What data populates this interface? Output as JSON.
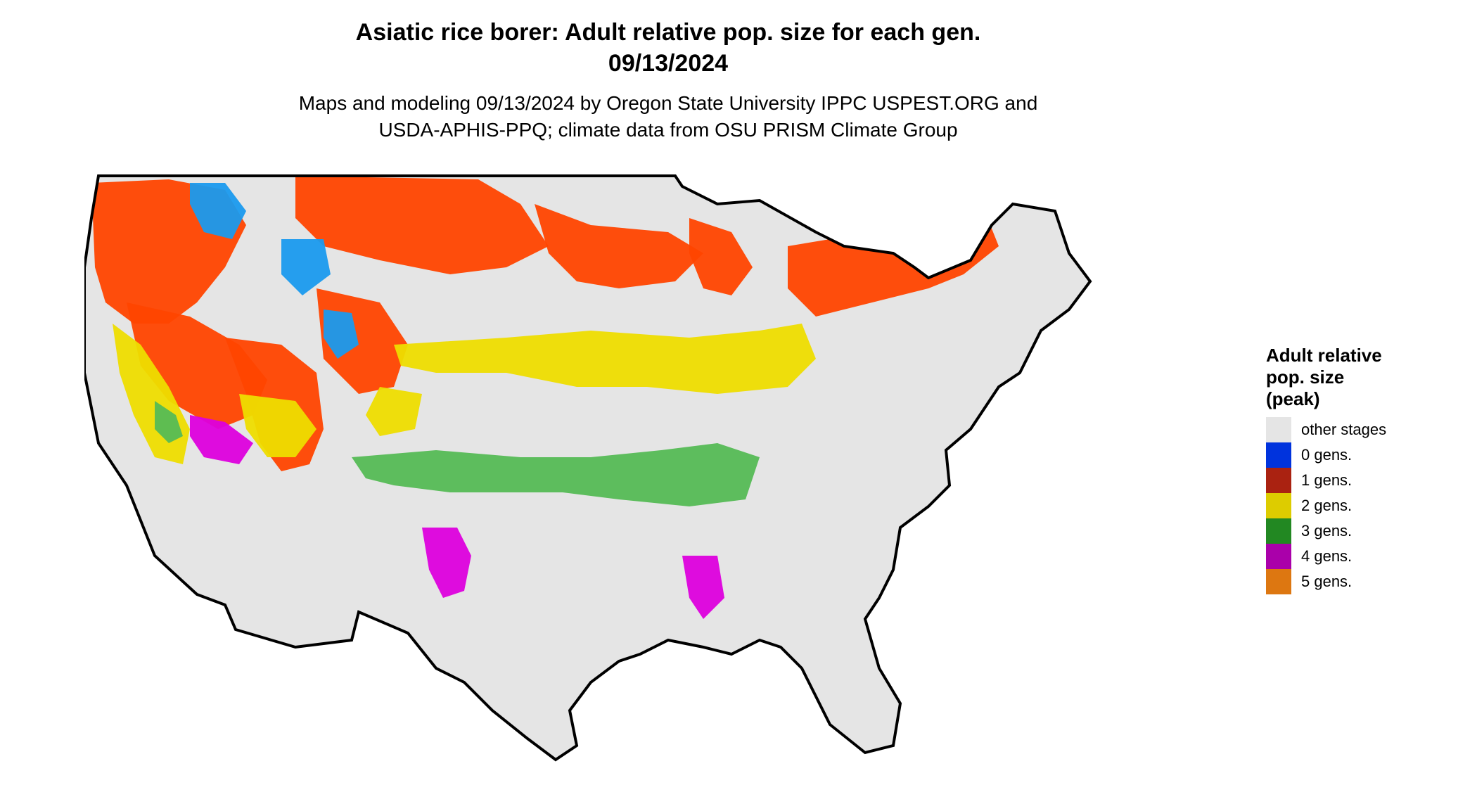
{
  "title": {
    "line1": "Asiatic rice borer: Adult relative pop. size for each gen.",
    "line2": "09/13/2024"
  },
  "subtitle": {
    "line1": "Maps and modeling 09/13/2024 by Oregon State University IPPC USPEST.ORG and",
    "line2": "USDA-APHIS-PPQ; climate data from OSU PRISM Climate Group"
  },
  "legend": {
    "title_lines": [
      "Adult relative",
      "pop. size",
      "(peak)"
    ],
    "items": [
      {
        "label": "other stages",
        "color": "#e5e5e5"
      },
      {
        "label": "0 gens.",
        "color": "#0033dd"
      },
      {
        "label": "1 gens.",
        "color": "#aa2211"
      },
      {
        "label": "2 gens.",
        "color": "#ddcc00"
      },
      {
        "label": "3 gens.",
        "color": "#228822"
      },
      {
        "label": "4 gens.",
        "color": "#aa00aa"
      },
      {
        "label": "5 gens.",
        "color": "#dd7711"
      }
    ]
  },
  "map": {
    "region": "Conterminous United States",
    "fill_colors": {
      "background": "#e5e5e5",
      "gen0": "#1a9aee",
      "gen1": "#ff4400",
      "gen2": "#eedd00",
      "gen3": "#55bb55",
      "gen4": "#dd00dd"
    }
  }
}
